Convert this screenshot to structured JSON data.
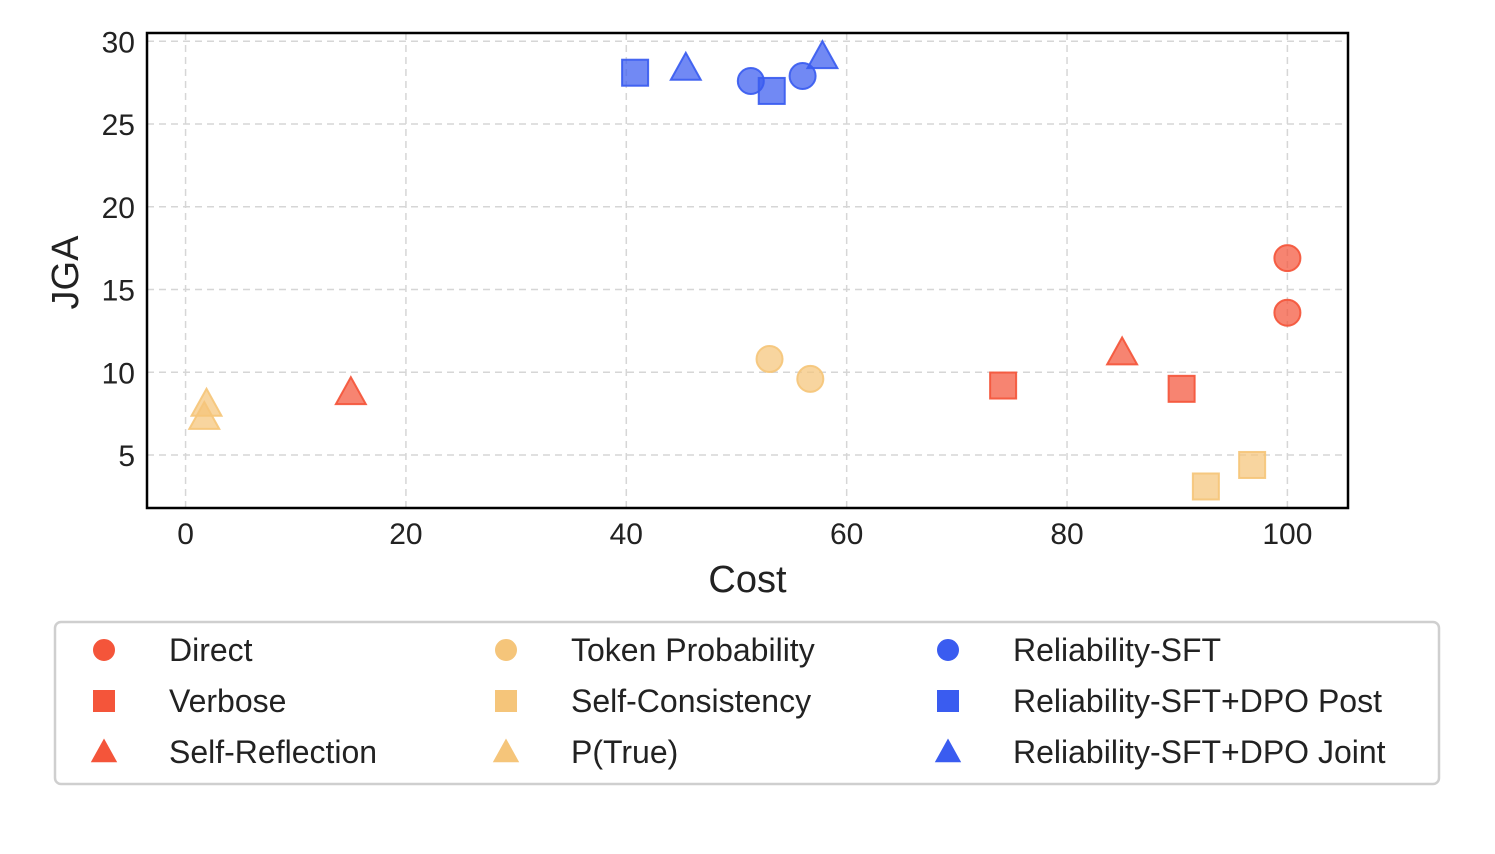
{
  "chart_data": {
    "type": "scatter",
    "xlabel": "Cost",
    "ylabel": "JGA",
    "xlim": [
      -3.5,
      105.5
    ],
    "ylim": [
      1.8,
      30.5
    ],
    "xticks": [
      0,
      20,
      40,
      60,
      80,
      100
    ],
    "yticks": [
      5,
      10,
      15,
      20,
      25,
      30
    ],
    "grid": true,
    "legend_position": "bottom",
    "series": [
      {
        "name": "Direct",
        "marker": "circle",
        "color": "#F4553A",
        "points": [
          [
            100,
            16.9
          ],
          [
            100,
            13.6
          ]
        ]
      },
      {
        "name": "Verbose",
        "marker": "square",
        "color": "#F4553A",
        "points": [
          [
            74.2,
            9.2
          ],
          [
            90.4,
            9.0
          ]
        ]
      },
      {
        "name": "Self-Reflection",
        "marker": "triangle",
        "color": "#F4553A",
        "points": [
          [
            15.0,
            8.8
          ],
          [
            85.0,
            11.2
          ]
        ]
      },
      {
        "name": "Token Probability",
        "marker": "circle",
        "color": "#F5C57A",
        "points": [
          [
            53.0,
            10.8
          ],
          [
            56.7,
            9.6
          ]
        ]
      },
      {
        "name": "Self-Consistency",
        "marker": "square",
        "color": "#F5C57A",
        "points": [
          [
            92.6,
            3.1
          ],
          [
            96.8,
            4.4
          ]
        ]
      },
      {
        "name": "P(True)",
        "marker": "triangle",
        "color": "#F5C57A",
        "points": [
          [
            1.7,
            7.3
          ],
          [
            1.9,
            8.1
          ]
        ]
      },
      {
        "name": "Reliability-SFT",
        "marker": "circle",
        "color": "#3A5CF0",
        "points": [
          [
            51.3,
            27.6
          ],
          [
            56.0,
            27.9
          ]
        ]
      },
      {
        "name": "Reliability-SFT+DPO Post",
        "marker": "square",
        "color": "#3A5CF0",
        "points": [
          [
            40.8,
            28.1
          ],
          [
            53.2,
            27.0
          ]
        ]
      },
      {
        "name": "Reliability-SFT+DPO Joint",
        "marker": "triangle",
        "color": "#3A5CF0",
        "points": [
          [
            45.4,
            28.4
          ],
          [
            57.8,
            29.1
          ]
        ]
      }
    ]
  }
}
